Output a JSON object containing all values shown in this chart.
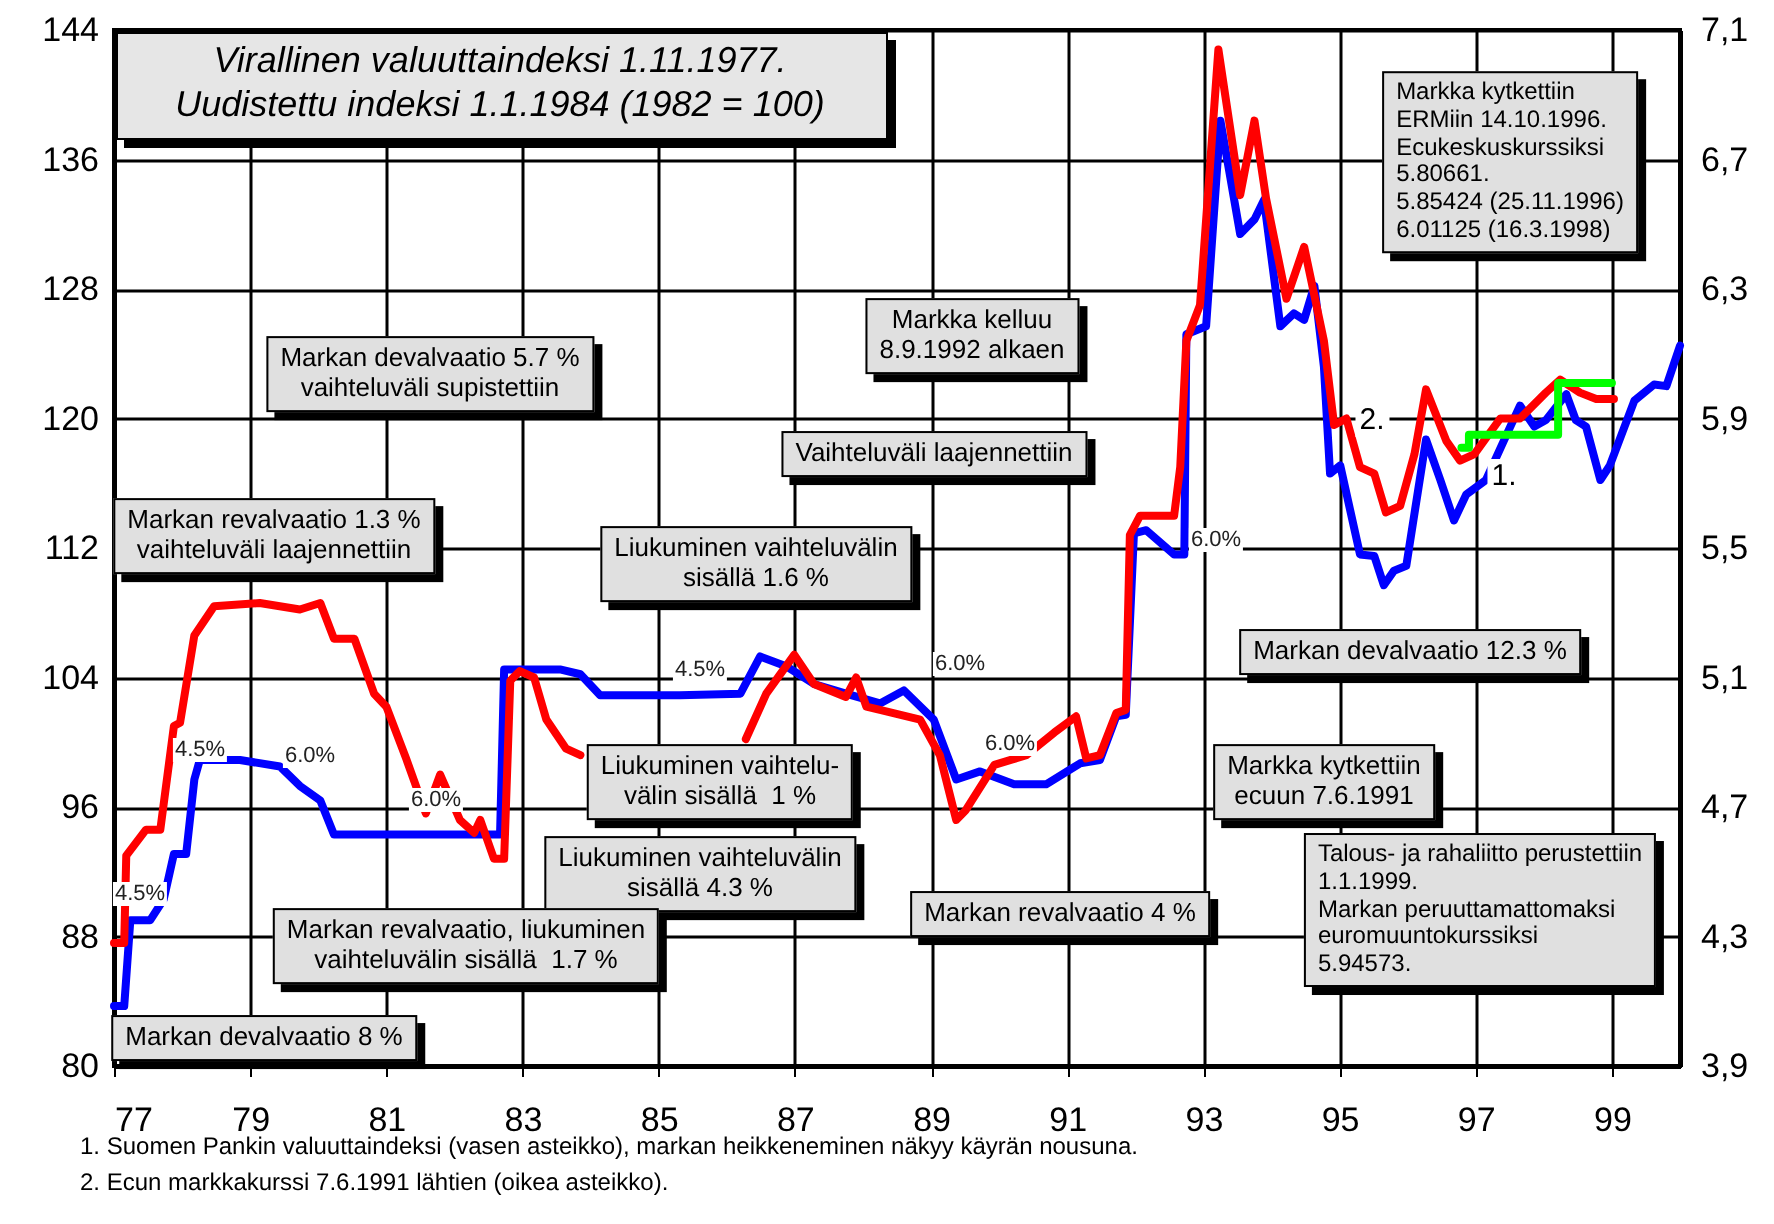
{
  "chart_data": {
    "type": "line",
    "title": "Virallinen valuuttaindeksi 1.11.1977.\nUudistettu indeksi 1.1.1984 (1982 = 100)",
    "xlim": [
      1977,
      2000
    ],
    "xticks": [
      {
        "value": 1977,
        "label": "77"
      },
      {
        "value": 1979,
        "label": "79"
      },
      {
        "value": 1981,
        "label": "81"
      },
      {
        "value": 1983,
        "label": "83"
      },
      {
        "value": 1985,
        "label": "85"
      },
      {
        "value": 1987,
        "label": "87"
      },
      {
        "value": 1989,
        "label": "89"
      },
      {
        "value": 1991,
        "label": "91"
      },
      {
        "value": 1993,
        "label": "93"
      },
      {
        "value": 1995,
        "label": "95"
      },
      {
        "value": 1997,
        "label": "97"
      },
      {
        "value": 1999,
        "label": "99"
      }
    ],
    "ylim": [
      80,
      144
    ],
    "yticks": [
      80,
      88,
      96,
      104,
      112,
      120,
      128,
      136,
      144
    ],
    "y2lim": [
      3.9,
      7.1
    ],
    "y2ticks": [
      {
        "value": 3.9,
        "label": "3,9"
      },
      {
        "value": 4.3,
        "label": "4,3"
      },
      {
        "value": 4.7,
        "label": "4,7"
      },
      {
        "value": 5.1,
        "label": "5,1"
      },
      {
        "value": 5.5,
        "label": "5,5"
      },
      {
        "value": 5.9,
        "label": "5,9"
      },
      {
        "value": 6.3,
        "label": "6,3"
      },
      {
        "value": 6.7,
        "label": "6,7"
      },
      {
        "value": 7.1,
        "label": "7,1"
      }
    ],
    "grid": true,
    "series": [
      {
        "name": "1.",
        "color": "#0000ff",
        "x": [
          1977.0,
          1977.15,
          1977.24,
          1977.53,
          1977.73,
          1977.88,
          1978.06,
          1978.18,
          1978.26,
          1978.85,
          1979.44,
          1979.73,
          1980.03,
          1980.23,
          1982.67,
          1982.73,
          1982.82,
          1983.55,
          1983.85,
          1984.14,
          1985.31,
          1986.2,
          1986.49,
          1986.87,
          1987.28,
          1987.75,
          1988.25,
          1988.6,
          1989.04,
          1989.37,
          1989.72,
          1990.22,
          1990.69,
          1991.19,
          1991.48,
          1991.72,
          1991.86,
          1991.98,
          1992.16,
          1992.57,
          1992.72,
          1992.75,
          1993.04,
          1993.25,
          1993.54,
          1993.75,
          1993.89,
          1994.13,
          1994.33,
          1994.48,
          1994.63,
          1994.77,
          1994.86,
          1995.01,
          1995.3,
          1995.51,
          1995.65,
          1995.8,
          1995.98,
          1996.27,
          1996.48,
          1996.68,
          1996.86,
          1997.15,
          1997.42,
          1997.65,
          1997.86,
          1998.03,
          1998.33,
          1998.47,
          1998.62,
          1998.83,
          1998.97,
          1999.33,
          1999.62,
          1999.8,
          2000.0
        ],
        "values": [
          83.7,
          83.7,
          89.0,
          89.0,
          90.3,
          93.1,
          93.1,
          97.7,
          98.9,
          98.9,
          98.5,
          97.3,
          96.4,
          94.3,
          94.3,
          104.5,
          104.5,
          104.5,
          104.2,
          102.9,
          102.9,
          103.0,
          105.3,
          104.7,
          103.6,
          103.0,
          102.4,
          103.2,
          101.4,
          97.7,
          98.2,
          97.4,
          97.4,
          98.7,
          98.9,
          101.6,
          101.7,
          112.9,
          113.1,
          111.6,
          111.6,
          125.2,
          125.7,
          138.4,
          131.4,
          132.3,
          133.5,
          125.7,
          126.5,
          126.1,
          128.2,
          123.2,
          116.6,
          117.1,
          111.6,
          111.5,
          109.7,
          110.6,
          110.9,
          118.7,
          116.2,
          113.7,
          115.3,
          116.2,
          118.7,
          120.8,
          119.5,
          119.9,
          121.5,
          119.9,
          119.5,
          116.2,
          117.1,
          121.1,
          122.1,
          122.0,
          124.5
        ]
      },
      {
        "name": "2.",
        "color": "#ff0000",
        "axis": "y2",
        "x": [
          1977.0,
          1977.15,
          1977.18,
          1977.47,
          1977.68,
          1977.88,
          1977.97,
          1978.18,
          1978.47,
          1979.14,
          1979.73,
          1980.03,
          1980.23,
          1980.53,
          1980.82,
          1981.0,
          1981.29,
          1981.58,
          1981.79,
          1982.08,
          1982.29,
          1982.38,
          1982.58,
          1982.73,
          1982.82,
          1982.96,
          1983.17,
          1983.35,
          1983.64,
          1983.85,
          1985.0,
          1986.28,
          1986.58,
          1986.99,
          1987.28,
          1987.75,
          1987.9,
          1988.05,
          1988.25,
          1988.84,
          1989.13,
          1989.37,
          1989.51,
          1989.93,
          1990.4,
          1990.81,
          1991.13,
          1991.28,
          1991.48,
          1991.72,
          1991.86,
          1991.92,
          1992.07,
          1992.57,
          1992.66,
          1992.75,
          1992.95,
          1993.22,
          1993.54,
          1993.75,
          1993.92,
          1994.22,
          1994.48,
          1994.77,
          1994.92,
          1995.1,
          1995.3,
          1995.51,
          1995.68,
          1995.89,
          1996.1,
          1996.27,
          1996.57,
          1996.77,
          1996.98,
          1997.36,
          1997.65,
          1998.03,
          1998.24,
          1998.53,
          1998.77,
          1999.03
        ],
        "values": [
          4.28,
          4.28,
          4.55,
          4.63,
          4.63,
          4.95,
          4.96,
          5.23,
          5.32,
          5.33,
          5.31,
          5.33,
          5.22,
          5.22,
          5.05,
          5.01,
          4.85,
          4.68,
          4.8,
          4.66,
          4.62,
          4.66,
          4.54,
          4.54,
          5.09,
          5.12,
          5.1,
          4.97,
          4.88,
          4.86,
          null,
          4.91,
          5.05,
          5.17,
          5.08,
          5.04,
          5.1,
          5.01,
          5.0,
          4.97,
          4.86,
          4.66,
          4.69,
          4.83,
          4.86,
          4.93,
          4.98,
          4.85,
          4.86,
          4.99,
          5.0,
          5.54,
          5.6,
          5.6,
          5.75,
          6.14,
          6.25,
          7.04,
          6.59,
          6.82,
          6.58,
          6.27,
          6.43,
          6.14,
          5.88,
          5.9,
          5.75,
          5.73,
          5.61,
          5.63,
          5.79,
          5.99,
          5.83,
          5.77,
          5.79,
          5.9,
          5.9,
          5.98,
          6.02,
          5.98,
          5.96,
          5.96
        ]
      },
      {
        "color": "#00ff00",
        "axis": "y2",
        "x": [
          1996.79,
          1996.9,
          1996.9,
          1998.21,
          1998.21,
          1999.0
        ],
        "values": [
          5.81,
          5.81,
          5.85,
          5.85,
          6.01,
          6.01
        ]
      }
    ],
    "annotations": [
      "Markan devalvaatio 5.7 %\nvaihteluväli supistettiin",
      "Markan revalvaatio 1.3 %\nvaihteluväli laajennettiin",
      "Markka kelluu\n8.9.1992 alkaen",
      "Vaihteluväli laajennettiin",
      "Liukuminen vaihteluvälin\nsisällä 1.6 %",
      "Markan devalvaatio 12.3 %",
      "Liukuminen vaihtelu-\nvälin sisällä  1 %",
      "Liukuminen vaihteluvälin\nsisällä 4.3 %",
      "Markka kytkettiin\necuun 7.6.1991",
      "Markan revalvaatio 4 %",
      "Markan revalvaatio, liukuminen\nvaihteluvälin sisällä  1.7 %",
      "Markan devalvaatio 8 %",
      "Markka kytkettiin\nERMiin 14.10.1996.\nEcukeskuskurssiksi\n5.80661.\n5.85424 (25.11.1996)\n6.01125 (16.3.1998)",
      "Talous- ja rahaliitto perustettiin\n1.1.1999.\nMarkan peruuttamattomaksi\neuromuuntokurssiksi\n5.94573.",
      "4.5%",
      "4.5%",
      "6.0%",
      "6.0%",
      "4.5%",
      "6.0%",
      "6.0%",
      "6.0%",
      "1. Suomen Pankin valuuttaindeksi (vasen asteikko), markan heikkeneminen näkyy käyrän nousuna.",
      "2. Ecun markkakurssi 7.6.1991 lähtien (oikea asteikko)."
    ]
  }
}
